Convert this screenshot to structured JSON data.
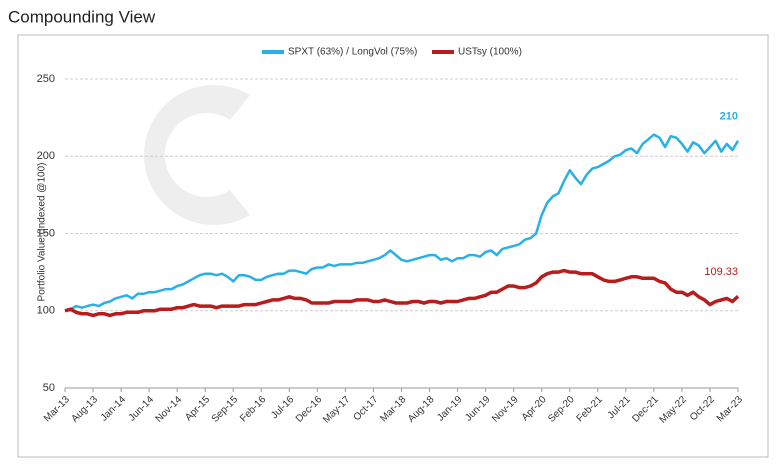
{
  "chart_data": {
    "type": "line",
    "title": "Compounding View",
    "y_label": "Portfolio Value (Indexed @100)",
    "categories": [
      "Mar-13",
      null,
      null,
      null,
      null,
      "Aug-13",
      null,
      null,
      null,
      null,
      "Jan-14",
      null,
      null,
      null,
      null,
      "Jun-14",
      null,
      null,
      null,
      null,
      "Nov-14",
      null,
      null,
      null,
      null,
      "Apr-15",
      null,
      null,
      null,
      null,
      "Sep-15",
      null,
      null,
      null,
      null,
      "Feb-16",
      null,
      null,
      null,
      null,
      "Jul-16",
      null,
      null,
      null,
      null,
      "Dec-16",
      null,
      null,
      null,
      null,
      "May-17",
      null,
      null,
      null,
      null,
      "Oct-17",
      null,
      null,
      null,
      null,
      "Mar-18",
      null,
      null,
      null,
      null,
      "Aug-18",
      null,
      null,
      null,
      null,
      "Jan-19",
      null,
      null,
      null,
      null,
      "Jun-19",
      null,
      null,
      null,
      null,
      "Nov-19",
      null,
      null,
      null,
      null,
      "Apr-20",
      null,
      null,
      null,
      null,
      "Sep-20",
      null,
      null,
      null,
      null,
      "Feb-21",
      null,
      null,
      null,
      null,
      "Jul-21",
      null,
      null,
      null,
      null,
      "Dec-21",
      null,
      null,
      null,
      null,
      "May-22",
      null,
      null,
      null,
      null,
      "Oct-22",
      null,
      null,
      null,
      null,
      "Mar-23"
    ],
    "series": [
      {
        "name": "SPXT (63%) / LongVol (75%)",
        "color": "#2ab0e6",
        "values": [
          100,
          101,
          103,
          102,
          103,
          104,
          103,
          105,
          106,
          108,
          109,
          110,
          108,
          111,
          111,
          112,
          112,
          113,
          114,
          114,
          116,
          117,
          119,
          121,
          123,
          124,
          124,
          123,
          124,
          122,
          119,
          123,
          123,
          122,
          120,
          120,
          122,
          123,
          124,
          124,
          126,
          126,
          125,
          124,
          127,
          128,
          128,
          130,
          129,
          130,
          130,
          130,
          131,
          131,
          132,
          133,
          134,
          136,
          139,
          136,
          133,
          132,
          133,
          134,
          135,
          136,
          136,
          133,
          134,
          132,
          134,
          134,
          136,
          136,
          135,
          138,
          139,
          136,
          140,
          141,
          142,
          143,
          146,
          147,
          150,
          162,
          170,
          174,
          176,
          184,
          191,
          186,
          182,
          188,
          192,
          193,
          195,
          197,
          200,
          201,
          204,
          205,
          202,
          208,
          211,
          214,
          212,
          206,
          213,
          212,
          208,
          203,
          209,
          207,
          202,
          206,
          210,
          203,
          208,
          204,
          210
        ]
      },
      {
        "name": "USTsy (100%)",
        "color": "#b81c1c",
        "values": [
          100,
          101,
          99,
          98,
          98,
          97,
          98,
          98,
          97,
          98,
          98,
          99,
          99,
          99,
          100,
          100,
          100,
          101,
          101,
          101,
          102,
          102,
          103,
          104,
          103,
          103,
          103,
          102,
          103,
          103,
          103,
          103,
          104,
          104,
          104,
          105,
          106,
          107,
          107,
          108,
          109,
          108,
          108,
          107,
          105,
          105,
          105,
          105,
          106,
          106,
          106,
          106,
          107,
          107,
          107,
          106,
          106,
          107,
          106,
          105,
          105,
          105,
          106,
          106,
          105,
          106,
          106,
          105,
          106,
          106,
          106,
          107,
          108,
          108,
          109,
          110,
          112,
          112,
          114,
          116,
          116,
          115,
          115,
          116,
          118,
          122,
          124,
          125,
          125,
          126,
          125,
          125,
          124,
          124,
          124,
          122,
          120,
          119,
          119,
          120,
          121,
          122,
          122,
          121,
          121,
          121,
          119,
          118,
          114,
          112,
          112,
          110,
          112,
          109,
          107,
          104,
          106,
          107,
          108,
          106,
          109.33
        ]
      }
    ],
    "ylim": [
      50,
      250
    ],
    "yticks": [
      50,
      100,
      150,
      200,
      250
    ],
    "grid": true,
    "legend": "top"
  }
}
